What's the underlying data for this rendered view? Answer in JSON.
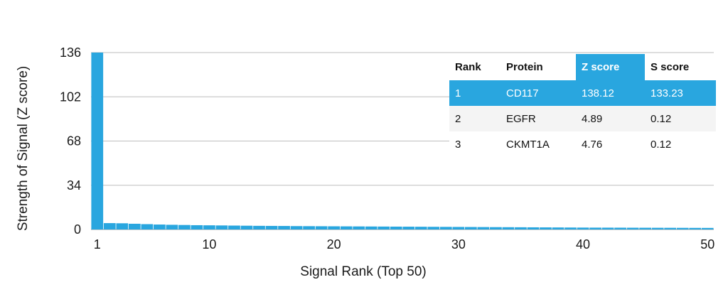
{
  "chart_data": {
    "type": "bar",
    "xlabel": "Signal Rank (Top 50)",
    "ylabel": "Strength of Signal (Z score)",
    "ylim": [
      0,
      136
    ],
    "yticks": [
      0,
      34,
      68,
      102,
      136
    ],
    "xticks": [
      1,
      10,
      20,
      30,
      40,
      50
    ],
    "grid": true,
    "bar_color": "#29a6df",
    "categories": [
      1,
      2,
      3,
      4,
      5,
      6,
      7,
      8,
      9,
      10,
      11,
      12,
      13,
      14,
      15,
      16,
      17,
      18,
      19,
      20,
      21,
      22,
      23,
      24,
      25,
      26,
      27,
      28,
      29,
      30,
      31,
      32,
      33,
      34,
      35,
      36,
      37,
      38,
      39,
      40,
      41,
      42,
      43,
      44,
      45,
      46,
      47,
      48,
      49,
      50
    ],
    "values": [
      138.12,
      4.89,
      4.76,
      4.4,
      4.1,
      3.8,
      3.6,
      3.45,
      3.3,
      3.2,
      3.1,
      3.0,
      2.9,
      2.8,
      2.75,
      2.7,
      2.6,
      2.55,
      2.5,
      2.45,
      2.4,
      2.35,
      2.3,
      2.25,
      2.2,
      2.15,
      2.1,
      2.05,
      2.0,
      1.95,
      1.9,
      1.85,
      1.8,
      1.75,
      1.7,
      1.65,
      1.6,
      1.55,
      1.5,
      1.45,
      1.42,
      1.4,
      1.38,
      1.35,
      1.33,
      1.3,
      1.28,
      1.25,
      1.22,
      1.2
    ]
  },
  "table": {
    "headers": [
      "Rank",
      "Protein",
      "Z score",
      "S score"
    ],
    "rows": [
      [
        "1",
        "CD117",
        "138.12",
        "133.23"
      ],
      [
        "2",
        "EGFR",
        "4.89",
        "0.12"
      ],
      [
        "3",
        "CKMT1A",
        "4.76",
        "0.12"
      ]
    ],
    "highlight_color": "#29a6df"
  }
}
